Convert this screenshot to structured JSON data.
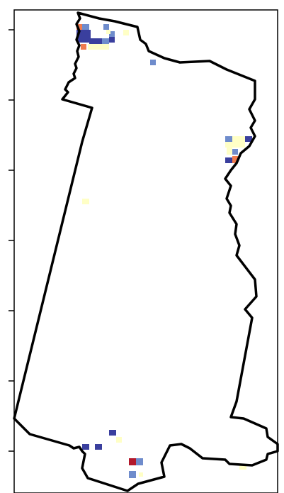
{
  "map": {
    "colors": {
      "frame": "#000000",
      "outline": "#000000",
      "background": "#ffffff",
      "cell_scale": [
        "#313695",
        "#4575b4",
        "#74add1",
        "#abd9e9",
        "#ffffbf",
        "#fdae61",
        "#f46d43",
        "#d73027",
        "#a50026"
      ]
    },
    "y_ticks": {
      "count": 7,
      "labels": []
    },
    "x_ticks": {
      "count": 0,
      "labels": []
    },
    "cells_by_category": {
      "dark_blue": "#3a3f9e",
      "mid_blue": "#6f8ccc",
      "pale_yellow": "#ffffc6",
      "orange": "#f07b4e",
      "dark_red": "#b2182b"
    }
  }
}
